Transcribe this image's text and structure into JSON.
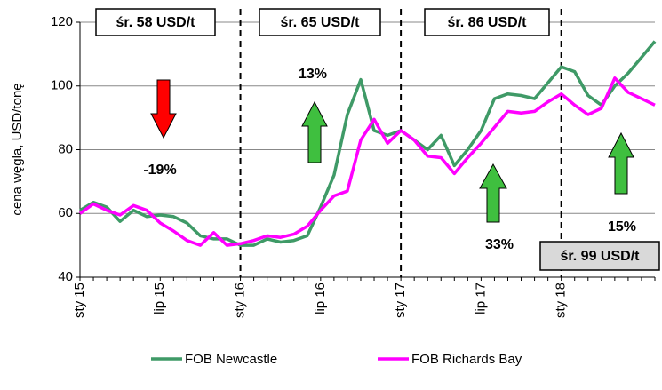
{
  "chart_data": {
    "type": "line",
    "y_label": "cena węgla, USD/tonę",
    "categories": [
      "sty 15",
      null,
      null,
      null,
      null,
      null,
      "lip 15",
      null,
      null,
      null,
      null,
      null,
      "sty 16",
      null,
      null,
      null,
      null,
      null,
      "lip 16",
      null,
      null,
      null,
      null,
      null,
      "sty 17",
      null,
      null,
      null,
      null,
      null,
      "lip 17",
      null,
      null,
      null,
      null,
      null,
      "sty 18",
      null,
      null,
      null,
      null,
      null,
      null,
      null
    ],
    "series": [
      {
        "name": "FOB Newcastle",
        "color": "#3f9a67",
        "values": [
          61,
          63.5,
          62,
          57.5,
          61,
          59,
          59.5,
          59,
          57,
          53,
          52,
          52,
          50,
          50,
          52,
          51,
          51.5,
          53,
          62,
          72,
          91,
          102,
          86,
          84.5,
          86,
          83,
          80,
          84.5,
          75,
          80,
          86,
          96,
          97.5,
          97,
          96,
          101,
          106,
          104.5,
          97,
          94,
          100,
          104,
          109,
          114
        ]
      },
      {
        "name": "FOB Richards Bay",
        "color": "#ff00ff",
        "values": [
          60,
          63,
          61,
          59.5,
          62.5,
          61,
          57,
          54.5,
          51.5,
          50,
          54,
          50,
          50.5,
          51.5,
          53,
          52.5,
          53.5,
          56,
          61,
          65.5,
          67,
          83,
          89.5,
          82,
          86,
          83,
          78,
          77.5,
          72.5,
          77.5,
          82,
          87,
          92,
          91.5,
          92,
          95,
          97.5,
          94,
          91,
          93,
          102.5,
          98,
          96,
          94
        ]
      }
    ],
    "ylim": [
      40,
      120
    ],
    "yticks": [
      40,
      60,
      80,
      100,
      120
    ],
    "grid": true,
    "annotations": [
      "śr. 58 USD/t",
      "śr. 65 USD/t",
      "śr. 86 USD/t",
      "śr. 99 USD/t",
      "-19%",
      "13%",
      "33%",
      "15%"
    ]
  }
}
